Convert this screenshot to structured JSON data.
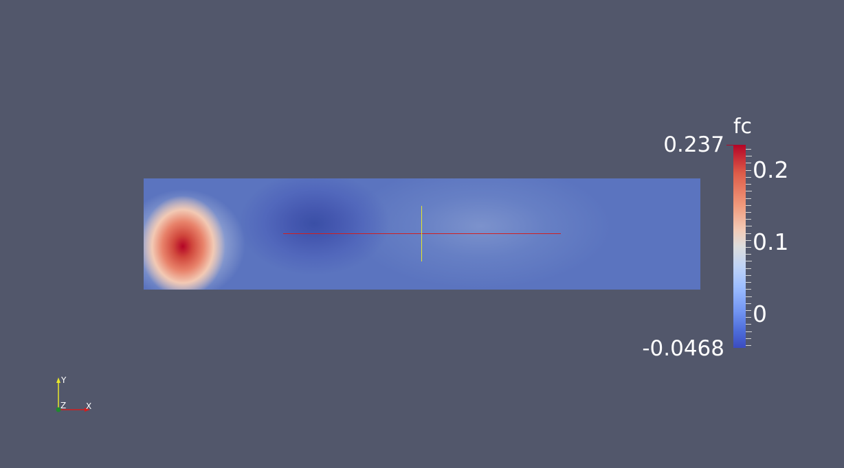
{
  "legend": {
    "title": "fc",
    "max_label": "0.237",
    "min_label": "-0.0468",
    "range": [
      -0.0468,
      0.237
    ],
    "tick_labels": [
      "0.2",
      "0.1",
      "0"
    ],
    "colors": {
      "high": "#b40426",
      "mid": "#dddddd",
      "low": "#3b4cc0"
    }
  },
  "probe": {
    "horizontal_color": "#d21e1e",
    "vertical_color": "#e8e82a"
  },
  "axes": {
    "x_label": "X",
    "y_label": "Y",
    "z_label": "Z"
  },
  "colors": {
    "background": "#52576b"
  }
}
